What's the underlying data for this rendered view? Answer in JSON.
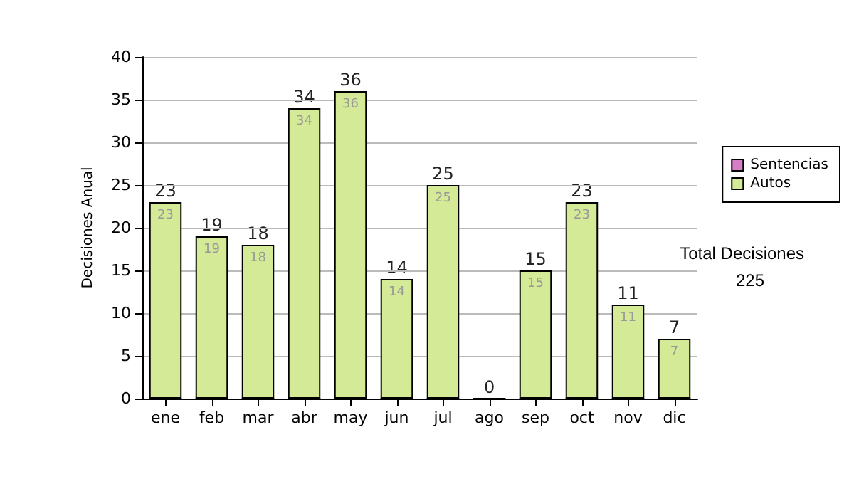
{
  "chart_data": {
    "type": "bar",
    "stacked": true,
    "ylabel": "Decisiones Anual",
    "categories": [
      "ene",
      "feb",
      "mar",
      "abr",
      "may",
      "jun",
      "jul",
      "ago",
      "sep",
      "oct",
      "nov",
      "dic"
    ],
    "series": [
      {
        "name": "Sentencias",
        "color": "#d77fc6",
        "values": [
          0,
          0,
          0,
          0,
          0,
          0,
          0,
          0,
          0,
          0,
          0,
          0
        ]
      },
      {
        "name": "Autos",
        "color": "#d4ea96",
        "values": [
          23,
          19,
          18,
          34,
          36,
          14,
          25,
          0,
          15,
          23,
          11,
          7
        ],
        "value_labels": [
          "23",
          "19",
          "18",
          "34",
          "36",
          "14",
          "25",
          null,
          "15",
          "23",
          "11",
          "7"
        ]
      }
    ],
    "totals": [
      "23",
      "19",
      "18",
      "34",
      "36",
      "14",
      "25",
      "0",
      "15",
      "23",
      "11",
      "7"
    ],
    "ylim": [
      0,
      40
    ],
    "yticks": [
      0,
      5,
      10,
      15,
      20,
      25,
      30,
      35,
      40
    ],
    "grid": "y",
    "legend": "right",
    "annotations": [
      "Total Decisiones",
      "225"
    ]
  }
}
